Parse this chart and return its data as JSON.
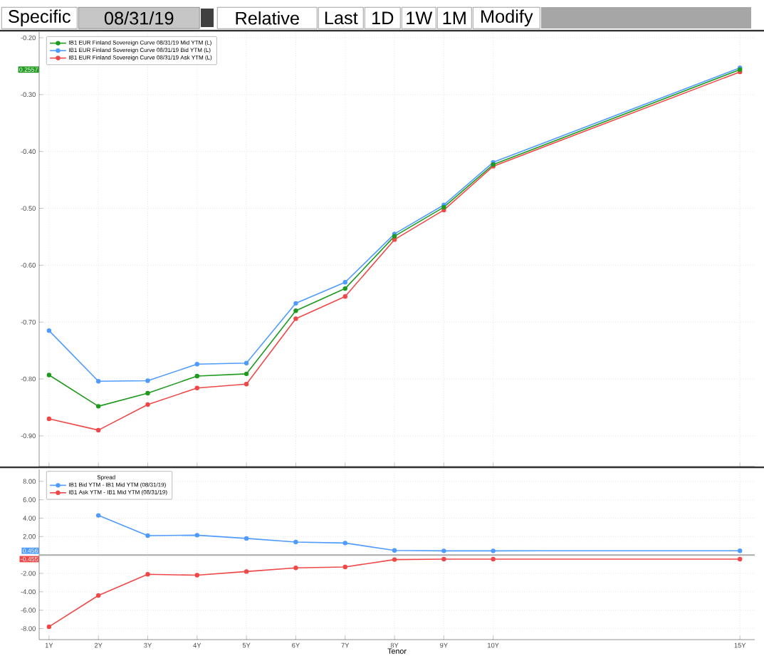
{
  "chart_data": [
    {
      "type": "line",
      "x": [
        1,
        2,
        3,
        4,
        5,
        6,
        7,
        8,
        9,
        10,
        15
      ],
      "series": [
        {
          "name": "IB1 EUR Finland Sovereign Curve 08/31/19 Mid YTM (L)",
          "color": "#1e9a1e",
          "values": [
            -0.793,
            -0.848,
            -0.825,
            -0.795,
            -0.791,
            -0.68,
            -0.641,
            -0.549,
            -0.498,
            -0.423,
            -0.256
          ]
        },
        {
          "name": "IB1 EUR Finland Sovereign Curve 08/31/19 Bid YTM (L)",
          "color": "#4f9bff",
          "values": [
            -0.715,
            -0.804,
            -0.803,
            -0.774,
            -0.772,
            -0.667,
            -0.63,
            -0.545,
            -0.494,
            -0.419,
            -0.253
          ]
        },
        {
          "name": "IB1 EUR Finland Sovereign Curve 08/31/19 Ask YTM (L)",
          "color": "#f04848",
          "values": [
            -0.87,
            -0.89,
            -0.845,
            -0.816,
            -0.809,
            -0.694,
            -0.655,
            -0.555,
            -0.503,
            -0.426,
            -0.26
          ]
        }
      ],
      "xlim": [
        0.8,
        15.3
      ],
      "ylim": [
        -0.954,
        -0.19
      ],
      "xticks": [
        1,
        2,
        3,
        4,
        5,
        6,
        7,
        8,
        9,
        10,
        15
      ],
      "yticks": [
        {
          "value": -0.2,
          "label": "-0.20"
        },
        {
          "value": -0.3,
          "label": "-0.30"
        },
        {
          "value": -0.4,
          "label": "-0.40"
        },
        {
          "value": -0.5,
          "label": "-0.50"
        },
        {
          "value": -0.6,
          "label": "-0.60"
        },
        {
          "value": -0.7,
          "label": "-0.70"
        },
        {
          "value": -0.8,
          "label": "-0.80"
        },
        {
          "value": -0.9,
          "label": "-0.90"
        }
      ],
      "tick_labels": "y",
      "grid": true,
      "legend": "top left",
      "marker": "circle",
      "annotations": [
        "Specific",
        "08/31/19",
        "Relative",
        "Last",
        "1D",
        "1W",
        "1M",
        "Modify",
        "0.2557"
      ]
    },
    {
      "type": "line",
      "x": [
        1,
        2,
        3,
        4,
        5,
        6,
        7,
        8,
        9,
        10,
        15
      ],
      "legend_title": "Spread",
      "series": [
        {
          "name": "IB1 Bid YTM - IB1 Mid YTM (08/31/19)",
          "color": "#4f9bff",
          "values": [
            null,
            4.3,
            2.1,
            2.15,
            1.8,
            1.4,
            1.3,
            0.5,
            0.45,
            0.45,
            0.46
          ]
        },
        {
          "name": "IB1 Ask YTM - IB1 Mid YTM (08/31/19)",
          "color": "#f04848",
          "values": [
            -7.8,
            -4.4,
            -2.1,
            -2.2,
            -1.8,
            -1.4,
            -1.3,
            -0.5,
            -0.45,
            -0.45,
            -0.45
          ]
        }
      ],
      "xlabel": "Tenor",
      "xlim": [
        0.8,
        15.3
      ],
      "ylim": [
        -9.2,
        9.3
      ],
      "xticks": [
        {
          "value": 1,
          "label": "1Y"
        },
        {
          "value": 2,
          "label": "2Y"
        },
        {
          "value": 3,
          "label": "3Y"
        },
        {
          "value": 4,
          "label": "4Y"
        },
        {
          "value": 5,
          "label": "5Y"
        },
        {
          "value": 6,
          "label": "6Y"
        },
        {
          "value": 7,
          "label": "7Y"
        },
        {
          "value": 8,
          "label": "8Y"
        },
        {
          "value": 9,
          "label": "9Y"
        },
        {
          "value": 10,
          "label": "10Y"
        },
        {
          "value": 15,
          "label": "15Y"
        }
      ],
      "yticks": [
        {
          "value": 8,
          "label": "8.00"
        },
        {
          "value": 6,
          "label": "6.00"
        },
        {
          "value": 4,
          "label": "4.00"
        },
        {
          "value": 2,
          "label": "2.00"
        },
        {
          "value": -2,
          "label": "-2.00"
        },
        {
          "value": -4,
          "label": "-4.00"
        },
        {
          "value": -6,
          "label": "-6.00"
        },
        {
          "value": -8,
          "label": "-8.00"
        }
      ],
      "grid": true,
      "legend": "top left",
      "marker": "circle",
      "ref_lines": [
        {
          "axis": "y",
          "value": 0,
          "color": "#aaaaaa"
        }
      ],
      "annotations": [
        "0.456",
        "-0.455"
      ]
    }
  ]
}
